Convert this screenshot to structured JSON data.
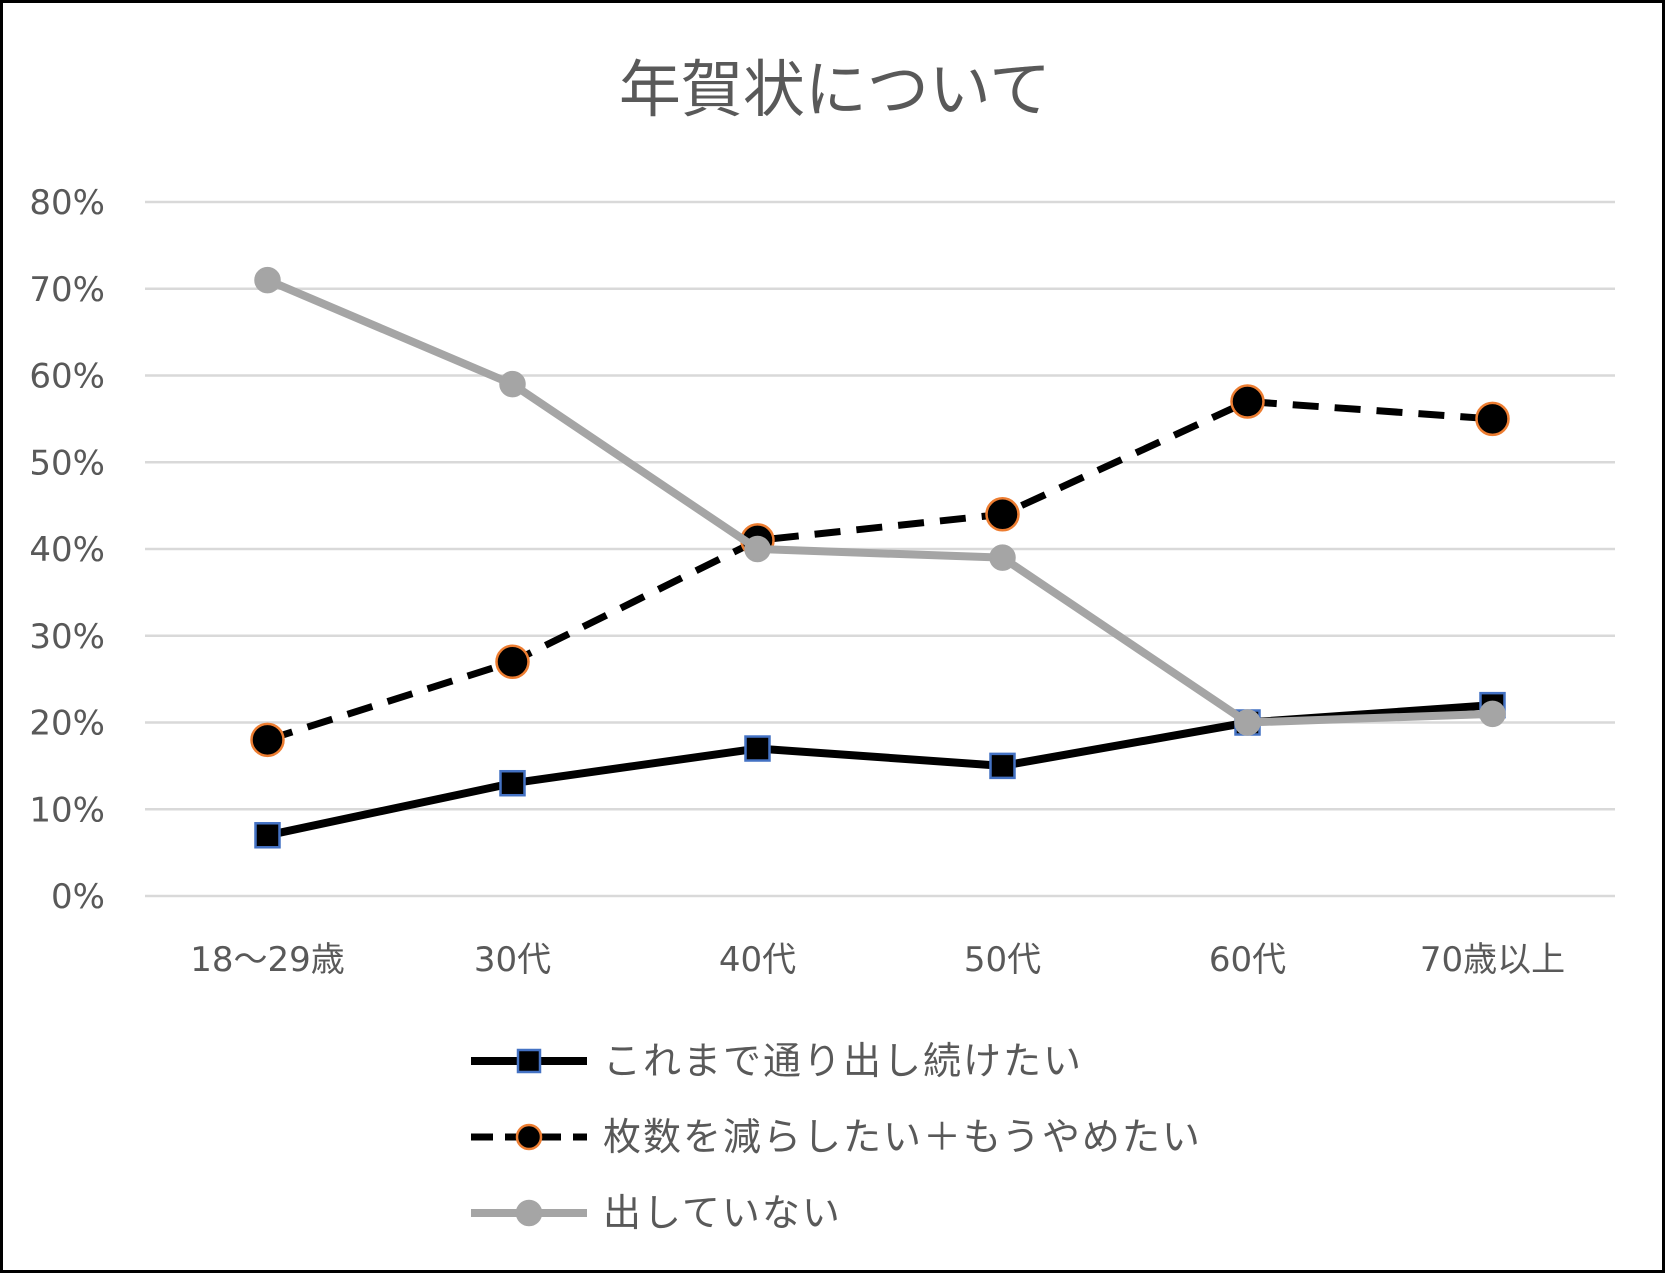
{
  "chart_data": {
    "type": "line",
    "title": "年賀状について",
    "xlabel": "",
    "ylabel": "",
    "categories": [
      "18〜29歳",
      "30代",
      "40代",
      "50代",
      "60代",
      "70歳以上"
    ],
    "ylim": [
      0,
      0.8
    ],
    "y_ticks": [
      0,
      0.1,
      0.2,
      0.3,
      0.4,
      0.5,
      0.6,
      0.7,
      0.8
    ],
    "y_tick_labels": [
      "0%",
      "10%",
      "20%",
      "30%",
      "40%",
      "50%",
      "60%",
      "70%",
      "80%"
    ],
    "grid": true,
    "legend_position": "bottom",
    "series": [
      {
        "name": "これまで通り出し続けたい",
        "values": [
          0.07,
          0.13,
          0.17,
          0.15,
          0.2,
          0.22
        ],
        "line_color": "#000000",
        "line_style": "solid",
        "marker": "square",
        "marker_fill": "#000000",
        "marker_edge": "#4472C4"
      },
      {
        "name": "枚数を減らしたい＋もうやめたい",
        "values": [
          0.18,
          0.27,
          0.41,
          0.44,
          0.57,
          0.55
        ],
        "line_color": "#000000",
        "line_style": "dashed",
        "marker": "circle",
        "marker_fill": "#000000",
        "marker_edge": "#ED7D31"
      },
      {
        "name": "出していない",
        "values": [
          0.71,
          0.59,
          0.4,
          0.39,
          0.2,
          0.21
        ],
        "line_color": "#A5A5A5",
        "line_style": "solid",
        "marker": "circle",
        "marker_fill": "#A5A5A5",
        "marker_edge": "#A5A5A5"
      }
    ]
  }
}
